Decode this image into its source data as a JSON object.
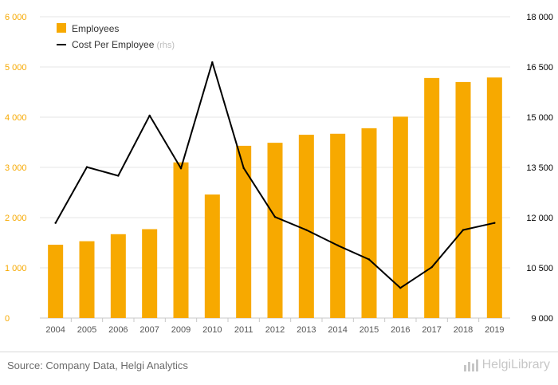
{
  "chart_data": {
    "type": "bar",
    "categories": [
      "2004",
      "2005",
      "2006",
      "2007",
      "2009",
      "2010",
      "2011",
      "2012",
      "2013",
      "2014",
      "2015",
      "2016",
      "2017",
      "2018",
      "2019"
    ],
    "series": [
      {
        "name": "Employees",
        "type": "bar",
        "axis": "left",
        "color": "#f7a900",
        "values": [
          1460,
          1530,
          1670,
          1770,
          3100,
          2460,
          3430,
          3490,
          3650,
          3670,
          3780,
          4010,
          4780,
          4700,
          4790
        ]
      },
      {
        "name": "Cost Per Employee",
        "name_suffix": "(rhs)",
        "type": "line",
        "axis": "right",
        "color": "#000000",
        "values": [
          11840,
          13510,
          13250,
          15050,
          13470,
          16640,
          13480,
          12020,
          11630,
          11170,
          10750,
          9900,
          10520,
          11630,
          11840
        ]
      }
    ],
    "y_left": {
      "min": 0,
      "max": 6000,
      "ticks": [
        0,
        1000,
        2000,
        3000,
        4000,
        5000,
        6000
      ],
      "tick_labels": [
        "0",
        "1 000",
        "2 000",
        "3 000",
        "4 000",
        "5 000",
        "6 000"
      ],
      "color": "#f7a900"
    },
    "y_right": {
      "min": 9000,
      "max": 18000,
      "ticks": [
        9000,
        10500,
        12000,
        13500,
        15000,
        16500,
        18000
      ],
      "tick_labels": [
        "9 000",
        "10 500",
        "12 000",
        "13 500",
        "15 000",
        "16 500",
        "18 000"
      ],
      "color": "#000000"
    },
    "grid": true,
    "legend": "top-left"
  },
  "footer": {
    "source": "Source: Company Data, Helgi Analytics",
    "brand": "HelgiLibrary",
    "brand_icon": "bar-chart-icon"
  }
}
